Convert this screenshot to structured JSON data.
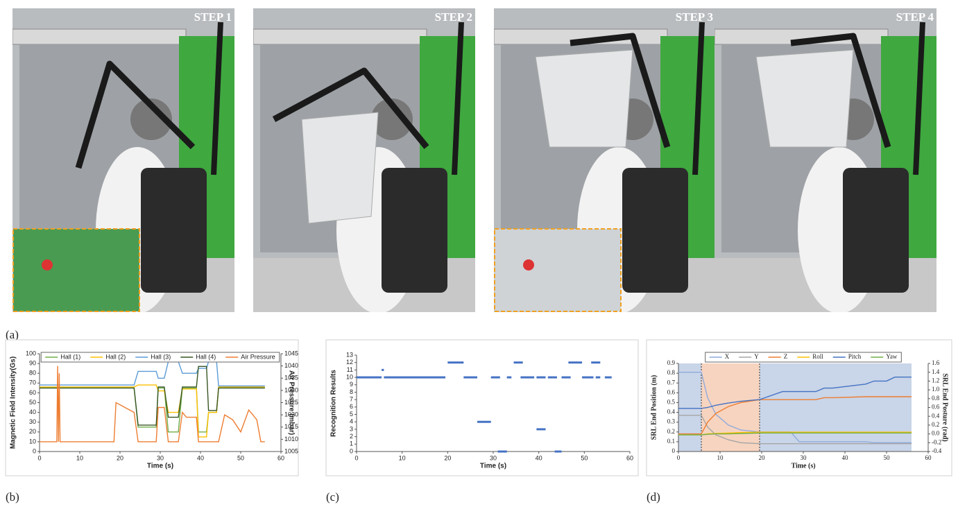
{
  "panel_labels": [
    "(a)",
    "(b)",
    "(c)",
    "(d)"
  ],
  "photos": [
    {
      "label": "STEP 1"
    },
    {
      "label": "STEP 2"
    },
    {
      "label": "STEP 3"
    },
    {
      "label": "STEP 4"
    }
  ],
  "chart_data": [
    {
      "type": "line",
      "xlabel": "Time (s)",
      "ylabel": "Magnetic Field Intensity(Gs)",
      "y2label": "Air Pressure (mbar)",
      "xlim": [
        0,
        60
      ],
      "xticks": [
        0,
        10,
        20,
        30,
        40,
        50,
        60
      ],
      "ylim": [
        0,
        100
      ],
      "yticks": [
        0,
        10,
        20,
        30,
        40,
        50,
        60,
        70,
        80,
        90,
        100
      ],
      "y2lim": [
        1005,
        1045
      ],
      "y2ticks": [
        1005,
        1010,
        1015,
        1020,
        1025,
        1030,
        1035,
        1040,
        1045
      ],
      "grid": false,
      "legend": "top",
      "x": [
        0,
        4.3,
        4.5,
        4.7,
        4.9,
        5.1,
        5.3,
        18.5,
        19,
        23.5,
        24.5,
        29,
        29.5,
        31,
        32,
        34.5,
        35.5,
        36.5,
        39,
        39.5,
        41.5,
        42,
        44,
        44.5,
        46,
        48,
        50,
        52,
        53,
        54,
        55,
        56
      ],
      "series": [
        {
          "name": "Hall (1)",
          "color": "#70ad47",
          "values": [
            65,
            65,
            65,
            65,
            65,
            65,
            65,
            65,
            65,
            65,
            25,
            25,
            65,
            65,
            20,
            20,
            65,
            65,
            65,
            20,
            20,
            40,
            40,
            65,
            65,
            65,
            65,
            65,
            65,
            65,
            65,
            65
          ]
        },
        {
          "name": "Hall (2)",
          "color": "#ffc000",
          "values": [
            66,
            66,
            66,
            66,
            66,
            66,
            66,
            66,
            66,
            66,
            68,
            68,
            62,
            62,
            40,
            40,
            64,
            64,
            64,
            15,
            15,
            40,
            40,
            66,
            66,
            66,
            66,
            66,
            66,
            66,
            66,
            66
          ]
        },
        {
          "name": "Hall (3)",
          "color": "#5b9bd5",
          "values": [
            68,
            68,
            68,
            68,
            68,
            68,
            68,
            68,
            68,
            68,
            82,
            82,
            75,
            75,
            92,
            92,
            80,
            80,
            80,
            85,
            85,
            92,
            92,
            67,
            67,
            67,
            67,
            67,
            67,
            67,
            67,
            67
          ]
        },
        {
          "name": "Hall (4)",
          "color": "#375623",
          "values": [
            65,
            65,
            65,
            65,
            65,
            65,
            65,
            65,
            65,
            65,
            27,
            27,
            66,
            66,
            35,
            35,
            66,
            66,
            66,
            87,
            87,
            42,
            42,
            65,
            65,
            65,
            65,
            65,
            65,
            65,
            65,
            65
          ]
        },
        {
          "name": "Air Pressure",
          "color": "#ed7d31",
          "axis": "y2",
          "values": [
            1009,
            1009,
            1040,
            1009,
            1037,
            1009,
            1009,
            1009,
            1025,
            1021,
            1009,
            1009,
            1023,
            1023,
            1009,
            1009,
            1021,
            1019,
            1019,
            1009,
            1009,
            1009,
            1009,
            1009,
            1020,
            1018,
            1013,
            1022,
            1020,
            1018,
            1009,
            1009
          ]
        }
      ]
    },
    {
      "type": "segment",
      "xlabel": "Time (s)",
      "ylabel": "Recognition Results",
      "xlim": [
        0,
        60
      ],
      "xticks": [
        0,
        10,
        20,
        30,
        40,
        50,
        60
      ],
      "ylim": [
        0,
        13
      ],
      "yticks": [
        0,
        1,
        2,
        3,
        4,
        5,
        6,
        7,
        8,
        9,
        10,
        11,
        12,
        13
      ],
      "grid": false,
      "color": "#4472c4",
      "segments": [
        {
          "x0": 0,
          "x1": 5.5,
          "value": 10
        },
        {
          "x0": 5.5,
          "x1": 6,
          "value": 11
        },
        {
          "x0": 6,
          "x1": 19.5,
          "value": 10
        },
        {
          "x0": 20,
          "x1": 23.5,
          "value": 12
        },
        {
          "x0": 23.5,
          "x1": 26.5,
          "value": 10
        },
        {
          "x0": 26.5,
          "x1": 29.5,
          "value": 4
        },
        {
          "x0": 29.5,
          "x1": 31.5,
          "value": 10
        },
        {
          "x0": 31,
          "x1": 33,
          "value": 0
        },
        {
          "x0": 33,
          "x1": 34,
          "value": 10
        },
        {
          "x0": 34.5,
          "x1": 36.5,
          "value": 12
        },
        {
          "x0": 36,
          "x1": 39,
          "value": 10
        },
        {
          "x0": 39.5,
          "x1": 41.5,
          "value": 3
        },
        {
          "x0": 39.5,
          "x1": 41.5,
          "value": 10
        },
        {
          "x0": 42,
          "x1": 44,
          "value": 10
        },
        {
          "x0": 43.5,
          "x1": 45,
          "value": 0
        },
        {
          "x0": 45,
          "x1": 47,
          "value": 10
        },
        {
          "x0": 46.5,
          "x1": 49.5,
          "value": 12
        },
        {
          "x0": 49.5,
          "x1": 52,
          "value": 10
        },
        {
          "x0": 51.5,
          "x1": 53.5,
          "value": 12
        },
        {
          "x0": 52.5,
          "x1": 53.5,
          "value": 10
        },
        {
          "x0": 54.5,
          "x1": 56,
          "value": 10
        }
      ]
    },
    {
      "type": "line",
      "xlabel": "Time (s)",
      "ylabel": "SRL End Position (m)",
      "y2label": "SRL End Posture (rad)",
      "xlim": [
        0,
        60
      ],
      "xticks": [
        0,
        10,
        20,
        30,
        40,
        50,
        60
      ],
      "ylim": [
        0,
        0.9
      ],
      "yticks": [
        0,
        0.1,
        0.2,
        0.3,
        0.4,
        0.5,
        0.6,
        0.7,
        0.8,
        0.9
      ],
      "y2lim": [
        -0.4,
        1.6
      ],
      "y2ticks": [
        -0.4,
        -0.2,
        {
          "value": 0,
          "label": "0.0"
        },
        0.2,
        0.4,
        0.6,
        0.8,
        {
          "value": 1,
          "label": "1.0"
        },
        1.2,
        1.4,
        1.6
      ],
      "grid": false,
      "legend": "top",
      "regions": [
        {
          "x0": 0,
          "x1": 5.5,
          "color": "#c9d5e8"
        },
        {
          "x0": 5.5,
          "x1": 19.5,
          "color": "#f6d4c0"
        },
        {
          "x0": 19.5,
          "x1": 56,
          "color": "#c9d5e8"
        }
      ],
      "x": [
        0,
        5.5,
        7,
        9,
        12,
        15,
        19.5,
        25,
        27,
        29,
        33,
        35,
        37,
        45,
        47,
        50,
        52,
        56
      ],
      "series": [
        {
          "name": "X",
          "color": "#8faadc",
          "values": [
            0.81,
            0.81,
            0.55,
            0.38,
            0.27,
            0.22,
            0.2,
            0.2,
            0.2,
            0.1,
            0.1,
            0.1,
            0.1,
            0.1,
            0.09,
            0.09,
            0.09,
            0.09
          ]
        },
        {
          "name": "Y",
          "color": "#a5a5a5",
          "values": [
            0.37,
            0.37,
            0.25,
            0.17,
            0.12,
            0.09,
            0.08,
            0.08,
            0.08,
            0.08,
            0.08,
            0.08,
            0.08,
            0.08,
            0.08,
            0.08,
            0.08,
            0.08
          ]
        },
        {
          "name": "Z",
          "color": "#ed7d31",
          "values": [
            0.18,
            0.18,
            0.3,
            0.39,
            0.46,
            0.5,
            0.53,
            0.53,
            0.53,
            0.53,
            0.53,
            0.55,
            0.55,
            0.56,
            0.56,
            0.56,
            0.56,
            0.56
          ]
        },
        {
          "name": "Roll",
          "color": "#ffc000",
          "axis": "y2",
          "values": [
            -0.02,
            -0.02,
            0,
            0.01,
            0.02,
            0.03,
            0.04,
            0.04,
            0.04,
            0.04,
            0.04,
            0.04,
            0.04,
            0.04,
            0.04,
            0.04,
            0.04,
            0.04
          ]
        },
        {
          "name": "Pitch",
          "color": "#4472c4",
          "axis": "y2",
          "values": [
            0.58,
            0.58,
            0.6,
            0.65,
            0.7,
            0.74,
            0.78,
            0.96,
            0.96,
            0.96,
            0.96,
            1.04,
            1.04,
            1.13,
            1.2,
            1.2,
            1.29,
            1.29
          ]
        },
        {
          "name": "Yaw",
          "color": "#70ad47",
          "axis": "y2",
          "values": [
            -0.02,
            -0.02,
            -0.01,
            0,
            0,
            0.01,
            0.02,
            0.02,
            0.02,
            0.02,
            0.02,
            0.02,
            0.02,
            0.02,
            0.02,
            0.02,
            0.02,
            0.02
          ]
        }
      ]
    }
  ]
}
